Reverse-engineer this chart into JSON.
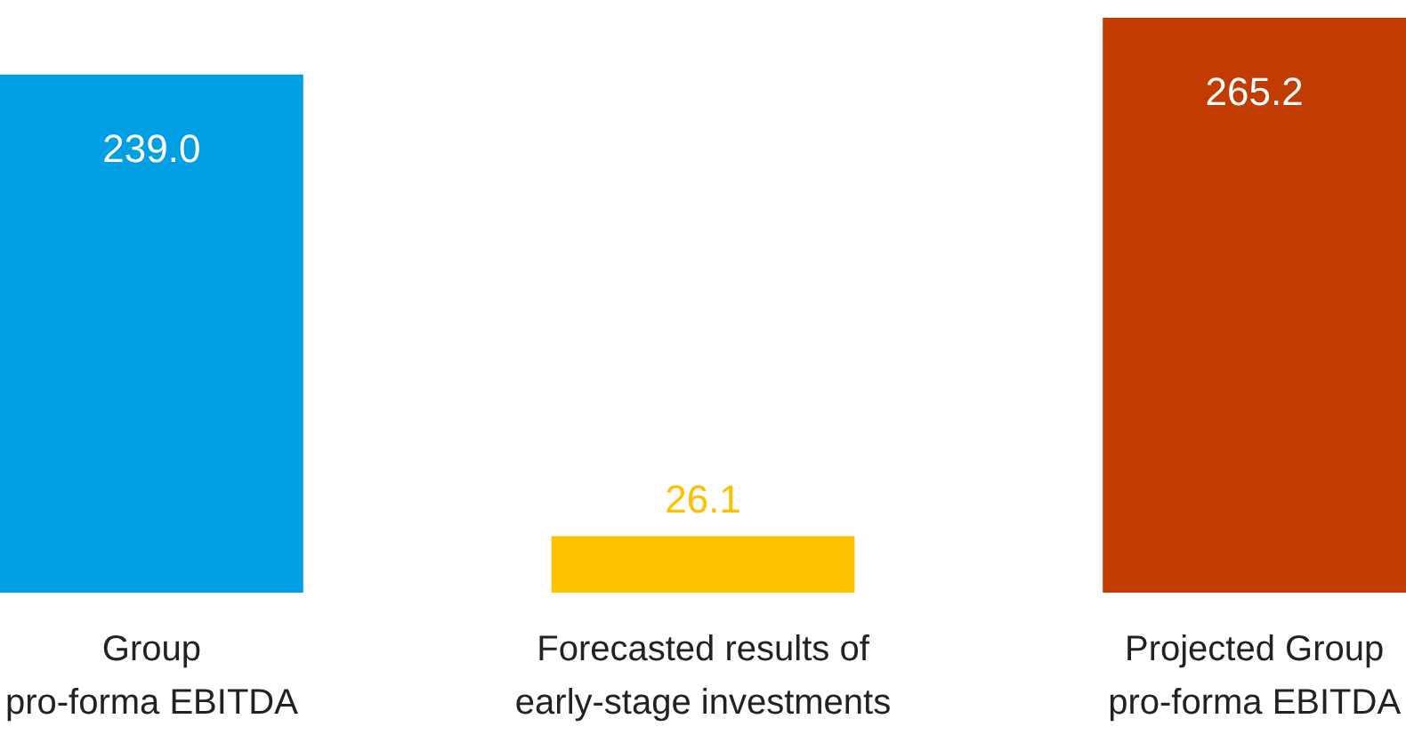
{
  "chart_data": {
    "type": "bar",
    "categories": [
      "Group\npro-forma EBITDA",
      "Forecasted results of\nearly-stage investments",
      "Projected Group\npro-forma EBITDA"
    ],
    "values": [
      239.0,
      26.1,
      265.2
    ],
    "colors": [
      "#009fe3",
      "#ffc000",
      "#c23b00"
    ],
    "value_labels": [
      "239.0",
      "26.1",
      "265.2"
    ]
  }
}
